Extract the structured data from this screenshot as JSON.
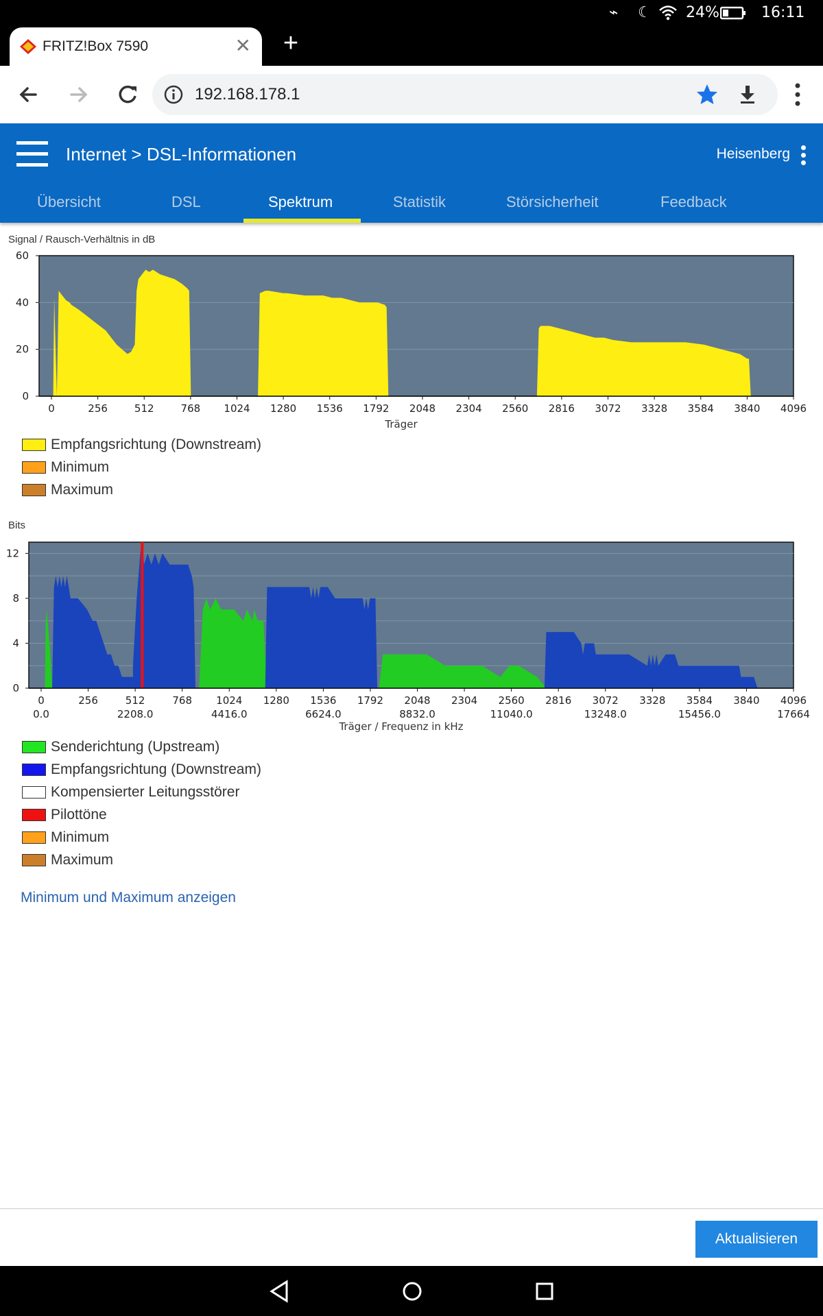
{
  "status": {
    "battery": "24%",
    "time": "16:11"
  },
  "tab": {
    "title": "FRITZ!Box 7590",
    "close": "✕",
    "new_tab": "+"
  },
  "toolbar": {
    "url": "192.168.178.1"
  },
  "header": {
    "breadcrumb_section": "Internet",
    "breadcrumb_sep": ">",
    "breadcrumb_page": "DSL-Informationen",
    "user": "Heisenberg",
    "tabs": [
      "Übersicht",
      "DSL",
      "Spektrum",
      "Statistik",
      "Störsicherheit",
      "Feedback"
    ],
    "active_tab": "Spektrum"
  },
  "chart1": {
    "ylabel": "Signal / Rausch-Verhältnis in dB",
    "xlabel": "Träger",
    "yticks": [
      "60",
      "40",
      "20",
      "0"
    ],
    "xticks": [
      "0",
      "256",
      "512",
      "768",
      "1024",
      "1280",
      "1536",
      "1792",
      "2048",
      "2304",
      "2560",
      "2816",
      "3072",
      "3328",
      "3584",
      "3840",
      "4096"
    ],
    "legend": [
      {
        "label": "Empfangsrichtung (Downstream)",
        "color": "#ffee11"
      },
      {
        "label": "Minimum",
        "color": "#ffa11a"
      },
      {
        "label": "Maximum",
        "color": "#cc7f2a"
      }
    ]
  },
  "chart2": {
    "ylabel": "Bits",
    "xlabel": "Träger / Frequenz in kHz",
    "yticks": [
      "12",
      "8",
      "4",
      "0"
    ],
    "xticks": [
      "0",
      "256",
      "512",
      "768",
      "1024",
      "1280",
      "1536",
      "1792",
      "2048",
      "2304",
      "2560",
      "2816",
      "3072",
      "3328",
      "3584",
      "3840",
      "4096"
    ],
    "freqticks": [
      "0.0",
      "2208.0",
      "4416.0",
      "6624.0",
      "8832.0",
      "11040.0",
      "13248.0",
      "15456.0",
      "17664"
    ],
    "legend": [
      {
        "label": "Senderichtung (Upstream)",
        "color": "#22e622"
      },
      {
        "label": "Empfangsrichtung (Downstream)",
        "color": "#1515ee"
      },
      {
        "label": "Kompensierter Leitungsstörer",
        "color": "#ffffff"
      },
      {
        "label": "Pilottöne",
        "color": "#ee1111"
      },
      {
        "label": "Minimum",
        "color": "#ffa11a"
      },
      {
        "label": "Maximum",
        "color": "#cc7f2a"
      }
    ]
  },
  "chart_data": [
    {
      "type": "area",
      "title": "",
      "ylabel": "Signal / Rausch-Verhältnis in dB",
      "xlabel": "Träger",
      "xlim": [
        0,
        4096
      ],
      "ylim": [
        0,
        60
      ],
      "grid": true,
      "series": [
        {
          "name": "Empfangsrichtung (Downstream)",
          "color": "#ffee11",
          "x": [
            10,
            15,
            30,
            40,
            50,
            60,
            70,
            80,
            100,
            110,
            150,
            200,
            250,
            300,
            340,
            360,
            390,
            420,
            440,
            460,
            470,
            480,
            500,
            520,
            540,
            560,
            580,
            600,
            640,
            680,
            700,
            720,
            750,
            760,
            770,
            780,
            790,
            1120,
            1140,
            1150,
            1180,
            1200,
            1280,
            1300,
            1400,
            1500,
            1550,
            1600,
            1650,
            1700,
            1750,
            1800,
            1840,
            1850,
            1860,
            2670,
            2680,
            2690,
            2700,
            2750,
            2800,
            2850,
            2900,
            2950,
            3000,
            3050,
            3100,
            3200,
            3300,
            3400,
            3500,
            3600,
            3650,
            3700,
            3750,
            3800,
            3820,
            3840,
            3850,
            3860
          ],
          "values": [
            0,
            42,
            0,
            45,
            44,
            43,
            42,
            41,
            40,
            39,
            37,
            34,
            31,
            28,
            24,
            22,
            20,
            18,
            19,
            22,
            45,
            50,
            52,
            54,
            53,
            54,
            53,
            52,
            51,
            50,
            49,
            48,
            46,
            45,
            0,
            0,
            0,
            0,
            0,
            44,
            45,
            45,
            44,
            44,
            43,
            43,
            42,
            42,
            41,
            40,
            40,
            40,
            39,
            38,
            0,
            0,
            0,
            29,
            30,
            30,
            29,
            28,
            27,
            26,
            25,
            25,
            24,
            23,
            23,
            23,
            23,
            22,
            21,
            20,
            19,
            18,
            17,
            16,
            16,
            0
          ]
        }
      ]
    },
    {
      "type": "area",
      "title": "",
      "ylabel": "Bits",
      "xlabel": "Träger / Frequenz in kHz",
      "xlim": [
        0,
        4096
      ],
      "ylim": [
        0,
        13
      ],
      "grid": true,
      "series": [
        {
          "name": "Senderichtung (Upstream)",
          "color": "#22cc22",
          "segments": [
            {
              "x": [
                20,
                25,
                30,
                40,
                50,
                60
              ],
              "values": [
                0,
                6,
                7,
                5,
                3,
                0
              ]
            },
            {
              "x": [
                860,
                880,
                900,
                920,
                950,
                980,
                1000,
                1050,
                1100,
                1120,
                1150,
                1160,
                1180,
                1190,
                1200,
                1210,
                1230
              ],
              "values": [
                0,
                7,
                8,
                7,
                8,
                7,
                7,
                7,
                6,
                7,
                6,
                7,
                6,
                6,
                6,
                6,
                0
              ]
            },
            {
              "x": [
                1840,
                1860,
                2100,
                2200,
                2400,
                2500,
                2550,
                2600,
                2700,
                2750
              ],
              "values": [
                0,
                3,
                3,
                2,
                2,
                1,
                2,
                2,
                1,
                0
              ]
            }
          ]
        },
        {
          "name": "Empfangsrichtung (Downstream)",
          "color": "#1a44bb",
          "segments": [
            {
              "x": [
                60,
                70,
                80,
                90,
                100,
                110,
                120,
                130,
                140,
                150,
                160,
                200,
                250,
                280,
                300,
                320,
                340,
                360,
                380,
                400,
                420,
                440,
                460,
                480,
                500
              ],
              "values": [
                0,
                9,
                10,
                9,
                10,
                9,
                10,
                9,
                10,
                9,
                8,
                8,
                7,
                6,
                6,
                5,
                4,
                3,
                3,
                2,
                2,
                1,
                1,
                1,
                1
              ]
            },
            {
              "x": [
                500,
                510,
                520,
                530,
                540,
                550,
                560,
                580,
                600,
                620,
                640,
                660,
                700,
                760,
                800,
                820,
                830,
                840
              ],
              "values": [
                2,
                5,
                8,
                10,
                12,
                13,
                11,
                12,
                11,
                12,
                11,
                12,
                11,
                11,
                11,
                10,
                9,
                0
              ]
            },
            {
              "x": [
                1220,
                1230,
                1300,
                1400,
                1460,
                1470,
                1480,
                1490,
                1500,
                1510,
                1520,
                1560,
                1600,
                1700,
                1750,
                1760,
                1770,
                1780,
                1790,
                1820,
                1830
              ],
              "values": [
                0,
                9,
                9,
                9,
                9,
                8,
                9,
                8,
                9,
                8,
                9,
                9,
                8,
                8,
                8,
                7,
                8,
                7,
                8,
                8,
                0
              ]
            },
            {
              "x": [
                2740,
                2750,
                2800,
                2900,
                2940,
                2950,
                2960,
                2980,
                3000,
                3010,
                3020,
                3200,
                3300,
                3310,
                3320,
                3330,
                3340,
                3350,
                3360,
                3400,
                3450,
                3470,
                3480,
                3600,
                3800,
                3810,
                3850,
                3880,
                3900
              ],
              "values": [
                0,
                5,
                5,
                5,
                4,
                3,
                4,
                4,
                4,
                4,
                3,
                3,
                2,
                3,
                2,
                3,
                2,
                3,
                2,
                3,
                3,
                2,
                2,
                2,
                2,
                1,
                1,
                1,
                0
              ]
            }
          ]
        },
        {
          "name": "Pilottöne",
          "color": "#ee1111",
          "x": [
            550
          ],
          "values": [
            13
          ]
        }
      ]
    }
  ],
  "link": "Minimum und Maximum anzeigen",
  "footer": {
    "refresh": "Aktualisieren"
  }
}
